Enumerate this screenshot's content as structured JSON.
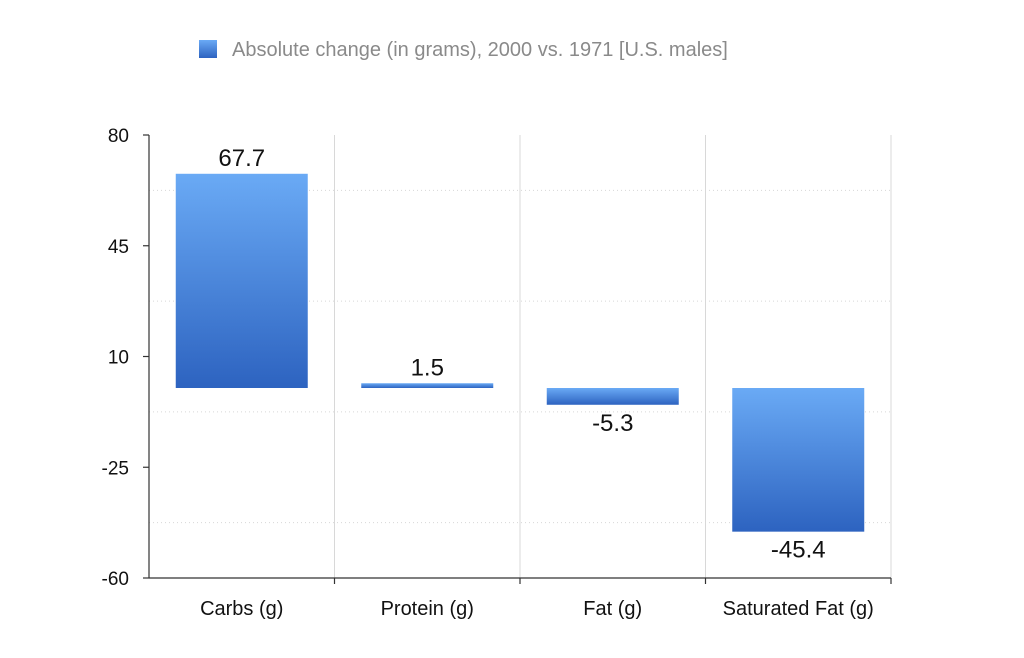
{
  "chart_data": {
    "type": "bar",
    "legend": {
      "label": "Absolute change (in grams), 2000 vs. 1971  [U.S. males]",
      "position": "top",
      "color": "#5b9be8"
    },
    "categories": [
      "Carbs (g)",
      "Protein (g)",
      "Fat (g)",
      "Saturated Fat (g)"
    ],
    "series": [
      {
        "name": "Absolute change (in grams), 2000 vs. 1971  [U.S. males]",
        "values": [
          67.7,
          1.5,
          -5.3,
          -45.4
        ],
        "labels": [
          "67.7",
          "1.5",
          "-5.3",
          "-45.4"
        ]
      }
    ],
    "ylim": [
      -60,
      80
    ],
    "yticks": [
      80,
      45,
      10,
      -25,
      -60
    ],
    "ytick_labels": [
      "80",
      "45",
      "10",
      "-25",
      "-60"
    ],
    "grid": true,
    "colors": {
      "bar_top": "#6aaaf5",
      "bar_bottom": "#2d63c0",
      "grid": "#d8d8d8",
      "axis": "#333333"
    }
  }
}
